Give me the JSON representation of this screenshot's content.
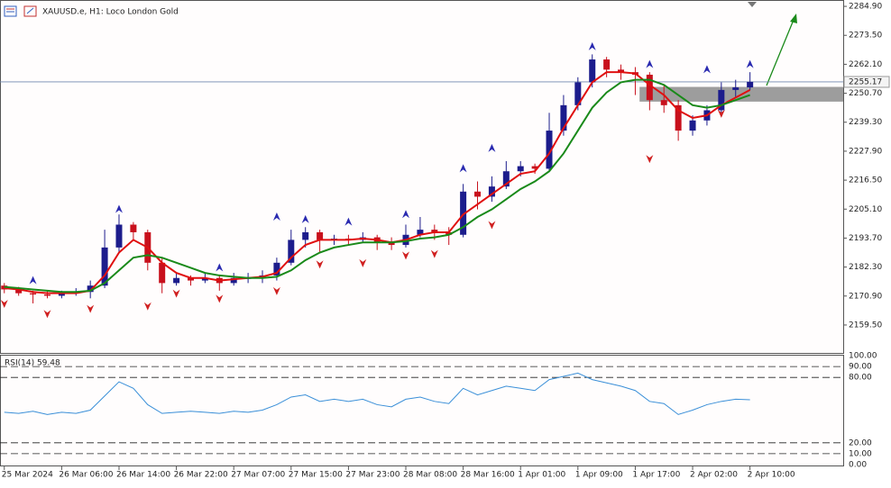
{
  "chart_data": [
    {
      "type": "candlestick",
      "title": "XAUUSD.e, H1:  Loco London Gold",
      "xlim": [
        -0.3,
        58.5
      ],
      "xticks": [
        {
          "value": 0,
          "label": "25 Mar 2024"
        },
        {
          "value": 4,
          "label": "26 Mar 06:00"
        },
        {
          "value": 8,
          "label": "26 Mar 14:00"
        },
        {
          "value": 12,
          "label": "26 Mar 22:00"
        },
        {
          "value": 16,
          "label": "27 Mar 07:00"
        },
        {
          "value": 20,
          "label": "27 Mar 15:00"
        },
        {
          "value": 24,
          "label": "27 Mar 23:00"
        },
        {
          "value": 28,
          "label": "28 Mar 08:00"
        },
        {
          "value": 32,
          "label": "28 Mar 16:00"
        },
        {
          "value": 36,
          "label": "1 Apr 01:00"
        },
        {
          "value": 40,
          "label": "1 Apr 09:00"
        },
        {
          "value": 44,
          "label": "1 Apr 17:00"
        },
        {
          "value": 48,
          "label": "2 Apr 02:00"
        },
        {
          "value": 52,
          "label": "2 Apr 10:00"
        }
      ],
      "ylim": [
        2148.5,
        2287.4
      ],
      "yticks": [
        {
          "value": 2284.9,
          "label": "2284.90"
        },
        {
          "value": 2273.5,
          "label": "2273.50"
        },
        {
          "value": 2262.1,
          "label": "2262.10"
        },
        {
          "value": 2250.7,
          "label": "2250.70"
        },
        {
          "value": 2239.3,
          "label": "2239.30"
        },
        {
          "value": 2227.9,
          "label": "2227.90"
        },
        {
          "value": 2216.5,
          "label": "2216.50"
        },
        {
          "value": 2205.1,
          "label": "2205.10"
        },
        {
          "value": 2193.7,
          "label": "2193.70"
        },
        {
          "value": 2182.3,
          "label": "2182.30"
        },
        {
          "value": 2170.9,
          "label": "2170.90"
        },
        {
          "value": 2159.5,
          "label": "2159.50"
        }
      ],
      "up_color": "#1c1c8c",
      "down_color": "#c8101c",
      "open": [
        2175,
        2173.5,
        2172,
        2171.5,
        2171,
        2172,
        2172.5,
        2175,
        2190,
        2199,
        2196,
        2184,
        2176,
        2178,
        2177,
        2178,
        2176,
        2178,
        2178,
        2179,
        2184,
        2193,
        2196,
        2193,
        2193.5,
        2193,
        2194,
        2192,
        2191,
        2195,
        2197,
        2196,
        2195,
        2212,
        2210,
        2214,
        2220,
        2222,
        2221,
        2236,
        2246,
        2255,
        2264,
        2260,
        2259,
        2258,
        2248,
        2246,
        2236,
        2240,
        2244,
        2252,
        2253
      ],
      "high": [
        2176,
        2174.5,
        2173,
        2173,
        2173,
        2174,
        2177,
        2197,
        2203,
        2200,
        2197,
        2186,
        2180,
        2179,
        2180,
        2179,
        2180,
        2180,
        2181,
        2186,
        2197,
        2198,
        2197,
        2195,
        2195,
        2196,
        2195,
        2194,
        2199,
        2202,
        2199,
        2198,
        2215,
        2216,
        2218,
        2224,
        2224,
        2223,
        2243,
        2250,
        2257,
        2266,
        2265,
        2262,
        2261,
        2259,
        2254,
        2248,
        2242,
        2246,
        2255,
        2256,
        2259
      ],
      "low": [
        2172,
        2171,
        2168,
        2170,
        2170,
        2171,
        2170,
        2174,
        2188,
        2193,
        2181,
        2172,
        2175,
        2175,
        2176,
        2173,
        2175,
        2176,
        2176,
        2177,
        2183,
        2190,
        2188,
        2191,
        2191,
        2192,
        2189,
        2189,
        2190,
        2194,
        2193,
        2191,
        2194,
        2205,
        2208,
        2213,
        2218,
        2219,
        2220,
        2234,
        2244,
        2253,
        2257,
        2256,
        2250,
        2244,
        2243,
        2232,
        2234,
        2238,
        2243,
        2249,
        2252
      ],
      "close": [
        2173.5,
        2172,
        2171.5,
        2171,
        2172,
        2172.5,
        2175,
        2190,
        2199,
        2196,
        2184,
        2176,
        2178,
        2177,
        2178,
        2176,
        2178,
        2178,
        2179,
        2184,
        2193,
        2196,
        2193,
        2193.5,
        2193,
        2194,
        2192,
        2191,
        2195,
        2197,
        2196,
        2195,
        2212,
        2210,
        2214,
        2220,
        2222,
        2221,
        2236,
        2246,
        2255,
        2264,
        2260,
        2259,
        2258,
        2248,
        2246,
        2236,
        2240,
        2244,
        2252,
        2253,
        2255.2
      ],
      "lines": [
        {
          "color": "#e01010",
          "values": [
            2174,
            2173.5,
            2172.5,
            2172,
            2172,
            2172,
            2173,
            2179,
            2188,
            2193,
            2190,
            2184,
            2180,
            2178,
            2178,
            2177,
            2177.5,
            2178,
            2178.5,
            2180,
            2186,
            2191,
            2193,
            2193,
            2193,
            2193.5,
            2193,
            2192,
            2193,
            2195,
            2196,
            2196,
            2203,
            2207,
            2211,
            2215,
            2219,
            2220,
            2227,
            2237,
            2246,
            2255,
            2259,
            2259,
            2258.5,
            2254,
            2250,
            2244,
            2241,
            2242,
            2246,
            2249,
            2252
          ]
        },
        {
          "color": "#1a8a1a",
          "values": [
            2174.5,
            2174,
            2173.5,
            2173,
            2172.5,
            2172.5,
            2173,
            2176,
            2181,
            2186,
            2187,
            2186,
            2184,
            2182,
            2180,
            2179,
            2178.5,
            2178,
            2178,
            2178.5,
            2181,
            2185,
            2188,
            2190,
            2191,
            2192,
            2192,
            2192,
            2192.5,
            2193.5,
            2194,
            2195,
            2198,
            2202,
            2205,
            2209,
            2213,
            2216,
            2220,
            2227,
            2236,
            2245,
            2251,
            2255,
            2256,
            2256,
            2254,
            2250,
            2246,
            2245,
            2246,
            2248,
            2250
          ]
        }
      ],
      "fractals_up": {
        "color": "#2a2ab0",
        "x": [
          2,
          8,
          15,
          19,
          21,
          24,
          28,
          32,
          34,
          41,
          45,
          49,
          52
        ],
        "values": [
          2177,
          2205,
          2182,
          2202,
          2201,
          2200,
          2203,
          2221,
          2229,
          2269,
          2262,
          2260,
          2262
        ]
      },
      "fractals_down": {
        "color": "#d02020",
        "x": [
          0,
          3,
          6,
          10,
          12,
          15,
          19,
          22,
          25,
          28,
          30,
          34,
          45,
          50
        ],
        "values": [
          2168,
          2164,
          2166,
          2167,
          2172,
          2170,
          2173,
          2183.5,
          2184,
          2187,
          2187.6,
          2199,
          2225,
          2242.8
        ]
      },
      "zone": {
        "color": "#8c8c8c",
        "values": [
          2247.4,
          2253.2
        ]
      },
      "last_price": 2255.17
    },
    {
      "type": "line",
      "title": "RSI(14) 59.48",
      "color": "#3a8fd8",
      "xlim": [
        -0.3,
        58.5
      ],
      "ylim": [
        0,
        100
      ],
      "yticks": [
        {
          "value": 100,
          "label": "100.00"
        },
        {
          "value": 90,
          "label": "90.00"
        },
        {
          "value": 80,
          "label": "80.00"
        },
        {
          "value": 20,
          "label": "20.00"
        },
        {
          "value": 10,
          "label": "10.00"
        },
        {
          "value": 0,
          "label": "0.00"
        }
      ],
      "values": [
        48,
        47,
        49,
        46,
        48,
        47,
        50,
        63,
        76,
        70,
        55,
        47,
        48,
        49,
        48,
        47,
        49,
        48,
        50,
        55,
        62,
        64,
        58,
        60,
        58,
        60,
        55,
        53,
        60,
        62,
        58,
        56,
        70,
        64,
        68,
        72,
        70,
        68,
        78,
        81,
        84,
        78,
        75,
        72,
        68,
        58,
        56,
        46,
        50,
        55,
        58,
        60,
        59.48
      ]
    }
  ]
}
